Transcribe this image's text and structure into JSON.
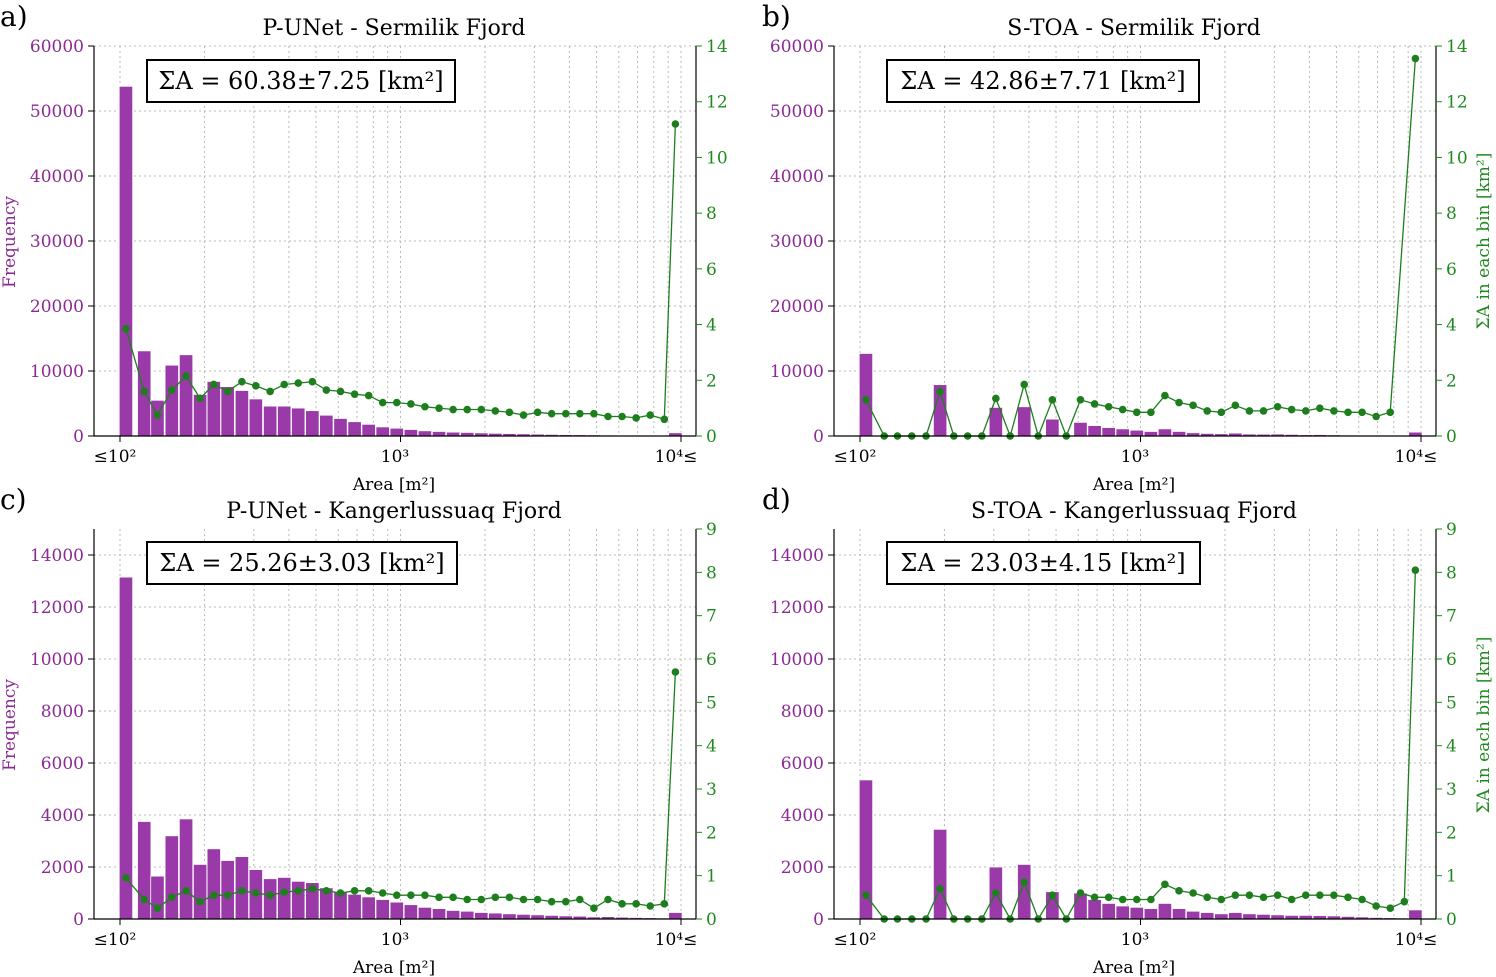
{
  "colors": {
    "bar": "#9a3aa8",
    "bar_edge": "#ffffff",
    "line": "#1e7e1e",
    "left_axis_text": "#8b2a94",
    "right_axis_text": "#1e8a1e",
    "grid": "#b8b8b8"
  },
  "chart_data": [
    {
      "type": "bar",
      "panel_label": "a)",
      "title": "P-UNet - Sermilik Fjord",
      "annotation": "ΣA = 60.38±7.25 [km²]",
      "xlabel": "Area [m²]",
      "ylabel": "Frequency",
      "y2label": "",
      "x_scale": "log",
      "x_tick_labels": [
        "≤10²",
        "10³",
        "10⁴≤"
      ],
      "ylim": [
        0,
        60000
      ],
      "y_ticks": [
        "0",
        "10000",
        "20000",
        "30000",
        "40000",
        "50000",
        "60000"
      ],
      "y2lim": [
        0,
        14
      ],
      "y2_ticks": [
        "0",
        "2",
        "4",
        "6",
        "8",
        "10",
        "12",
        "14"
      ],
      "grid": true,
      "bins": [
        {
          "x": 105,
          "frequency": 53800,
          "sum_area": 3.85
        },
        {
          "x": 122,
          "frequency": 13100,
          "sum_area": 1.6
        },
        {
          "x": 136,
          "frequency": 5500,
          "sum_area": 0.75
        },
        {
          "x": 153,
          "frequency": 10900,
          "sum_area": 1.65
        },
        {
          "x": 172,
          "frequency": 12500,
          "sum_area": 2.15
        },
        {
          "x": 193,
          "frequency": 6400,
          "sum_area": 1.35
        },
        {
          "x": 216,
          "frequency": 8400,
          "sum_area": 1.85
        },
        {
          "x": 242,
          "frequency": 7600,
          "sum_area": 1.6
        },
        {
          "x": 272,
          "frequency": 7000,
          "sum_area": 1.95
        },
        {
          "x": 305,
          "frequency": 5700,
          "sum_area": 1.8
        },
        {
          "x": 343,
          "frequency": 4600,
          "sum_area": 1.6
        },
        {
          "x": 385,
          "frequency": 4600,
          "sum_area": 1.85
        },
        {
          "x": 432,
          "frequency": 4300,
          "sum_area": 1.9
        },
        {
          "x": 485,
          "frequency": 3900,
          "sum_area": 1.95
        },
        {
          "x": 544,
          "frequency": 3200,
          "sum_area": 1.65
        },
        {
          "x": 611,
          "frequency": 2700,
          "sum_area": 1.6
        },
        {
          "x": 686,
          "frequency": 2200,
          "sum_area": 1.5
        },
        {
          "x": 770,
          "frequency": 1800,
          "sum_area": 1.45
        },
        {
          "x": 864,
          "frequency": 1400,
          "sum_area": 1.2
        },
        {
          "x": 970,
          "frequency": 1200,
          "sum_area": 1.2
        },
        {
          "x": 1089,
          "frequency": 1000,
          "sum_area": 1.15
        },
        {
          "x": 1222,
          "frequency": 800,
          "sum_area": 1.05
        },
        {
          "x": 1372,
          "frequency": 700,
          "sum_area": 1.0
        },
        {
          "x": 1540,
          "frequency": 600,
          "sum_area": 0.95
        },
        {
          "x": 1729,
          "frequency": 550,
          "sum_area": 0.95
        },
        {
          "x": 1941,
          "frequency": 480,
          "sum_area": 0.95
        },
        {
          "x": 2178,
          "frequency": 420,
          "sum_area": 0.9
        },
        {
          "x": 2445,
          "frequency": 370,
          "sum_area": 0.85
        },
        {
          "x": 2745,
          "frequency": 330,
          "sum_area": 0.75
        },
        {
          "x": 3081,
          "frequency": 290,
          "sum_area": 0.85
        },
        {
          "x": 3459,
          "frequency": 250,
          "sum_area": 0.8
        },
        {
          "x": 3883,
          "frequency": 220,
          "sum_area": 0.8
        },
        {
          "x": 4358,
          "frequency": 200,
          "sum_area": 0.8
        },
        {
          "x": 4892,
          "frequency": 180,
          "sum_area": 0.8
        },
        {
          "x": 5492,
          "frequency": 150,
          "sum_area": 0.7
        },
        {
          "x": 6165,
          "frequency": 130,
          "sum_area": 0.7
        },
        {
          "x": 6920,
          "frequency": 110,
          "sum_area": 0.65
        },
        {
          "x": 7768,
          "frequency": 100,
          "sum_area": 0.75
        },
        {
          "x": 8720,
          "frequency": 90,
          "sum_area": 0.6
        },
        {
          "x": 9550,
          "frequency": 500,
          "sum_area": 11.2
        }
      ]
    },
    {
      "type": "bar",
      "panel_label": "b)",
      "title": "S-TOA - Sermilik Fjord",
      "annotation": "ΣA = 42.86±7.71 [km²]",
      "xlabel": "Area [m²]",
      "ylabel": "",
      "y2label": "ΣA in each bin [km²]",
      "x_scale": "log",
      "x_tick_labels": [
        "≤10²",
        "10³",
        "10⁴≤"
      ],
      "ylim": [
        0,
        60000
      ],
      "y_ticks": [
        "0",
        "10000",
        "20000",
        "30000",
        "40000",
        "50000",
        "60000"
      ],
      "y2lim": [
        0,
        14
      ],
      "y2_ticks": [
        "0",
        "2",
        "4",
        "6",
        "8",
        "10",
        "12",
        "14"
      ],
      "grid": true,
      "bins": [
        {
          "x": 105,
          "frequency": 12700,
          "sum_area": 1.3
        },
        {
          "x": 122,
          "frequency": 0,
          "sum_area": 0
        },
        {
          "x": 136,
          "frequency": 0,
          "sum_area": 0
        },
        {
          "x": 153,
          "frequency": 0,
          "sum_area": 0
        },
        {
          "x": 172,
          "frequency": 0,
          "sum_area": 0
        },
        {
          "x": 193,
          "frequency": 7900,
          "sum_area": 1.6
        },
        {
          "x": 216,
          "frequency": 0,
          "sum_area": 0
        },
        {
          "x": 242,
          "frequency": 0,
          "sum_area": 0
        },
        {
          "x": 272,
          "frequency": 0,
          "sum_area": 0
        },
        {
          "x": 305,
          "frequency": 4400,
          "sum_area": 1.35
        },
        {
          "x": 343,
          "frequency": 0,
          "sum_area": 0
        },
        {
          "x": 385,
          "frequency": 4500,
          "sum_area": 1.85
        },
        {
          "x": 432,
          "frequency": 0,
          "sum_area": 0
        },
        {
          "x": 485,
          "frequency": 2600,
          "sum_area": 1.3
        },
        {
          "x": 544,
          "frequency": 0,
          "sum_area": 0
        },
        {
          "x": 611,
          "frequency": 2100,
          "sum_area": 1.3
        },
        {
          "x": 686,
          "frequency": 1600,
          "sum_area": 1.15
        },
        {
          "x": 770,
          "frequency": 1300,
          "sum_area": 1.05
        },
        {
          "x": 864,
          "frequency": 1100,
          "sum_area": 0.95
        },
        {
          "x": 970,
          "frequency": 900,
          "sum_area": 0.85
        },
        {
          "x": 1089,
          "frequency": 700,
          "sum_area": 0.85
        },
        {
          "x": 1222,
          "frequency": 1100,
          "sum_area": 1.45
        },
        {
          "x": 1372,
          "frequency": 700,
          "sum_area": 1.2
        },
        {
          "x": 1540,
          "frequency": 500,
          "sum_area": 1.1
        },
        {
          "x": 1729,
          "frequency": 400,
          "sum_area": 0.9
        },
        {
          "x": 1941,
          "frequency": 350,
          "sum_area": 0.85
        },
        {
          "x": 2178,
          "frequency": 450,
          "sum_area": 1.1
        },
        {
          "x": 2445,
          "frequency": 300,
          "sum_area": 0.9
        },
        {
          "x": 2745,
          "frequency": 280,
          "sum_area": 0.9
        },
        {
          "x": 3081,
          "frequency": 300,
          "sum_area": 1.05
        },
        {
          "x": 3459,
          "frequency": 250,
          "sum_area": 0.95
        },
        {
          "x": 3883,
          "frequency": 200,
          "sum_area": 0.9
        },
        {
          "x": 4358,
          "frequency": 220,
          "sum_area": 1.0
        },
        {
          "x": 4892,
          "frequency": 180,
          "sum_area": 0.9
        },
        {
          "x": 5492,
          "frequency": 150,
          "sum_area": 0.85
        },
        {
          "x": 6165,
          "frequency": 130,
          "sum_area": 0.85
        },
        {
          "x": 6920,
          "frequency": 110,
          "sum_area": 0.7
        },
        {
          "x": 7768,
          "frequency": 100,
          "sum_area": 0.85
        },
        {
          "x": 9550,
          "frequency": 600,
          "sum_area": 13.55
        }
      ]
    },
    {
      "type": "bar",
      "panel_label": "c)",
      "title": "P-UNet - Kangerlussuaq Fjord",
      "annotation": "ΣA = 25.26±3.03 [km²]",
      "xlabel": "Area [m²]",
      "ylabel": "Frequency",
      "y2label": "",
      "x_scale": "log",
      "x_tick_labels": [
        "≤10²",
        "10³",
        "10⁴≤"
      ],
      "ylim": [
        0,
        15000
      ],
      "y_ticks": [
        "0",
        "2000",
        "4000",
        "6000",
        "8000",
        "10000",
        "12000",
        "14000"
      ],
      "y2lim": [
        0,
        9
      ],
      "y2_ticks": [
        "0",
        "1",
        "2",
        "3",
        "4",
        "5",
        "6",
        "7",
        "8",
        "9"
      ],
      "grid": true,
      "bins": [
        {
          "x": 105,
          "frequency": 13150,
          "sum_area": 0.95
        },
        {
          "x": 122,
          "frequency": 3750,
          "sum_area": 0.45
        },
        {
          "x": 136,
          "frequency": 1650,
          "sum_area": 0.25
        },
        {
          "x": 153,
          "frequency": 3200,
          "sum_area": 0.5
        },
        {
          "x": 172,
          "frequency": 3850,
          "sum_area": 0.65
        },
        {
          "x": 193,
          "frequency": 2100,
          "sum_area": 0.4
        },
        {
          "x": 216,
          "frequency": 2700,
          "sum_area": 0.55
        },
        {
          "x": 242,
          "frequency": 2250,
          "sum_area": 0.55
        },
        {
          "x": 272,
          "frequency": 2400,
          "sum_area": 0.65
        },
        {
          "x": 305,
          "frequency": 1900,
          "sum_area": 0.6
        },
        {
          "x": 343,
          "frequency": 1550,
          "sum_area": 0.55
        },
        {
          "x": 385,
          "frequency": 1600,
          "sum_area": 0.62
        },
        {
          "x": 432,
          "frequency": 1450,
          "sum_area": 0.65
        },
        {
          "x": 485,
          "frequency": 1400,
          "sum_area": 0.7
        },
        {
          "x": 544,
          "frequency": 1200,
          "sum_area": 0.65
        },
        {
          "x": 611,
          "frequency": 1050,
          "sum_area": 0.6
        },
        {
          "x": 686,
          "frequency": 950,
          "sum_area": 0.65
        },
        {
          "x": 770,
          "frequency": 850,
          "sum_area": 0.65
        },
        {
          "x": 864,
          "frequency": 750,
          "sum_area": 0.6
        },
        {
          "x": 970,
          "frequency": 650,
          "sum_area": 0.55
        },
        {
          "x": 1089,
          "frequency": 550,
          "sum_area": 0.55
        },
        {
          "x": 1222,
          "frequency": 450,
          "sum_area": 0.55
        },
        {
          "x": 1372,
          "frequency": 400,
          "sum_area": 0.5
        },
        {
          "x": 1540,
          "frequency": 330,
          "sum_area": 0.5
        },
        {
          "x": 1729,
          "frequency": 300,
          "sum_area": 0.45
        },
        {
          "x": 1941,
          "frequency": 250,
          "sum_area": 0.45
        },
        {
          "x": 2178,
          "frequency": 230,
          "sum_area": 0.5
        },
        {
          "x": 2445,
          "frequency": 200,
          "sum_area": 0.5
        },
        {
          "x": 2745,
          "frequency": 180,
          "sum_area": 0.45
        },
        {
          "x": 3081,
          "frequency": 160,
          "sum_area": 0.45
        },
        {
          "x": 3459,
          "frequency": 140,
          "sum_area": 0.4
        },
        {
          "x": 3883,
          "frequency": 120,
          "sum_area": 0.4
        },
        {
          "x": 4358,
          "frequency": 110,
          "sum_area": 0.45
        },
        {
          "x": 4892,
          "frequency": 80,
          "sum_area": 0.25
        },
        {
          "x": 5492,
          "frequency": 90,
          "sum_area": 0.45
        },
        {
          "x": 6165,
          "frequency": 70,
          "sum_area": 0.35
        },
        {
          "x": 6920,
          "frequency": 60,
          "sum_area": 0.35
        },
        {
          "x": 7768,
          "frequency": 50,
          "sum_area": 0.3
        },
        {
          "x": 8720,
          "frequency": 40,
          "sum_area": 0.35
        },
        {
          "x": 9550,
          "frequency": 250,
          "sum_area": 5.7
        }
      ]
    },
    {
      "type": "bar",
      "panel_label": "d)",
      "title": "S-TOA - Kangerlussuaq Fjord",
      "annotation": "ΣA = 23.03±4.15 [km²]",
      "xlabel": "Area [m²]",
      "ylabel": "",
      "y2label": "ΣA in each bin [km²]",
      "x_scale": "log",
      "x_tick_labels": [
        "≤10²",
        "10³",
        "10⁴≤"
      ],
      "ylim": [
        0,
        15000
      ],
      "y_ticks": [
        "0",
        "2000",
        "4000",
        "6000",
        "8000",
        "10000",
        "12000",
        "14000"
      ],
      "y2lim": [
        0,
        9
      ],
      "y2_ticks": [
        "0",
        "1",
        "2",
        "3",
        "4",
        "5",
        "6",
        "7",
        "8",
        "9"
      ],
      "grid": true,
      "bins": [
        {
          "x": 105,
          "frequency": 5350,
          "sum_area": 0.55
        },
        {
          "x": 122,
          "frequency": 0,
          "sum_area": 0
        },
        {
          "x": 136,
          "frequency": 0,
          "sum_area": 0
        },
        {
          "x": 153,
          "frequency": 0,
          "sum_area": 0
        },
        {
          "x": 172,
          "frequency": 0,
          "sum_area": 0
        },
        {
          "x": 193,
          "frequency": 3450,
          "sum_area": 0.7
        },
        {
          "x": 216,
          "frequency": 0,
          "sum_area": 0
        },
        {
          "x": 242,
          "frequency": 0,
          "sum_area": 0
        },
        {
          "x": 272,
          "frequency": 0,
          "sum_area": 0
        },
        {
          "x": 305,
          "frequency": 2000,
          "sum_area": 0.6
        },
        {
          "x": 343,
          "frequency": 0,
          "sum_area": 0
        },
        {
          "x": 385,
          "frequency": 2100,
          "sum_area": 0.85
        },
        {
          "x": 432,
          "frequency": 0,
          "sum_area": 0
        },
        {
          "x": 485,
          "frequency": 1050,
          "sum_area": 0.55
        },
        {
          "x": 544,
          "frequency": 0,
          "sum_area": 0
        },
        {
          "x": 611,
          "frequency": 1000,
          "sum_area": 0.6
        },
        {
          "x": 686,
          "frequency": 750,
          "sum_area": 0.5
        },
        {
          "x": 770,
          "frequency": 600,
          "sum_area": 0.5
        },
        {
          "x": 864,
          "frequency": 500,
          "sum_area": 0.45
        },
        {
          "x": 970,
          "frequency": 450,
          "sum_area": 0.45
        },
        {
          "x": 1089,
          "frequency": 400,
          "sum_area": 0.45
        },
        {
          "x": 1222,
          "frequency": 600,
          "sum_area": 0.8
        },
        {
          "x": 1372,
          "frequency": 400,
          "sum_area": 0.65
        },
        {
          "x": 1540,
          "frequency": 300,
          "sum_area": 0.6
        },
        {
          "x": 1729,
          "frequency": 250,
          "sum_area": 0.5
        },
        {
          "x": 1941,
          "frequency": 200,
          "sum_area": 0.45
        },
        {
          "x": 2178,
          "frequency": 250,
          "sum_area": 0.55
        },
        {
          "x": 2445,
          "frequency": 200,
          "sum_area": 0.55
        },
        {
          "x": 2745,
          "frequency": 180,
          "sum_area": 0.5
        },
        {
          "x": 3081,
          "frequency": 160,
          "sum_area": 0.55
        },
        {
          "x": 3459,
          "frequency": 140,
          "sum_area": 0.45
        },
        {
          "x": 3883,
          "frequency": 140,
          "sum_area": 0.55
        },
        {
          "x": 4358,
          "frequency": 130,
          "sum_area": 0.55
        },
        {
          "x": 4892,
          "frequency": 120,
          "sum_area": 0.55
        },
        {
          "x": 5492,
          "frequency": 100,
          "sum_area": 0.5
        },
        {
          "x": 6165,
          "frequency": 80,
          "sum_area": 0.45
        },
        {
          "x": 6920,
          "frequency": 60,
          "sum_area": 0.3
        },
        {
          "x": 7768,
          "frequency": 50,
          "sum_area": 0.25
        },
        {
          "x": 8720,
          "frequency": 40,
          "sum_area": 0.4
        },
        {
          "x": 9550,
          "frequency": 350,
          "sum_area": 8.05
        }
      ]
    }
  ]
}
